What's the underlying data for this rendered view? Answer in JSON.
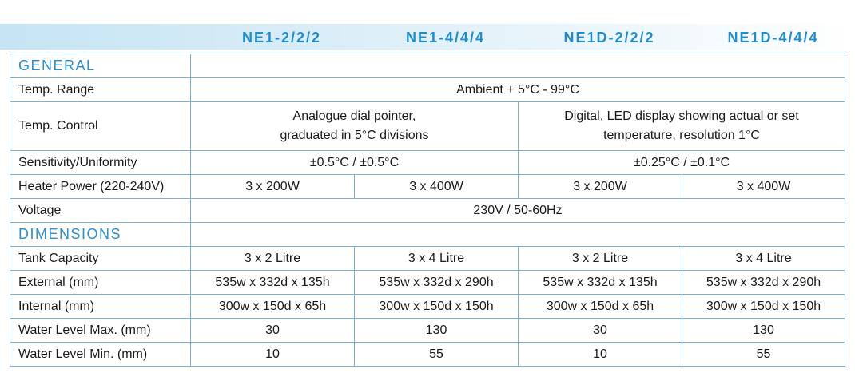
{
  "header": {
    "columns": [
      "NE1-2/2/2",
      "NE1-4/4/4",
      "NE1D-2/2/2",
      "NE1D-4/4/4"
    ]
  },
  "sections": [
    {
      "title": "GENERAL",
      "rows": [
        {
          "label": "Temp. Range",
          "cells": [
            "Ambient + 5°C - 99°C"
          ]
        },
        {
          "label": "Temp. Control",
          "cells": [
            [
              "Analogue dial pointer,",
              "graduated in 5°C divisions"
            ],
            [
              "Digital, LED display showing actual or set",
              "temperature, resolution 1°C"
            ]
          ]
        },
        {
          "label": "Sensitivity/Uniformity",
          "cells": [
            "±0.5°C / ±0.5°C",
            "±0.25°C / ±0.1°C"
          ]
        },
        {
          "label": "Heater Power (220-240V)",
          "cells": [
            "3 x 200W",
            "3 x 400W",
            "3 x 200W",
            "3 x 400W"
          ]
        },
        {
          "label": "Voltage",
          "cells": [
            "230V / 50-60Hz"
          ]
        }
      ]
    },
    {
      "title": "DIMENSIONS",
      "rows": [
        {
          "label": "Tank Capacity",
          "cells": [
            "3 x 2 Litre",
            "3 x 4 Litre",
            "3 x 2 Litre",
            "3 x 4 Litre"
          ]
        },
        {
          "label": "External (mm)",
          "cells": [
            "535w x 332d x 135h",
            "535w x 332d x 290h",
            "535w x 332d x 135h",
            "535w x 332d x 290h"
          ]
        },
        {
          "label": "Internal (mm)",
          "cells": [
            "300w x 150d x 65h",
            "300w x 150d x 150h",
            "300w x 150d x 65h",
            "300w x 150d x 150h"
          ]
        },
        {
          "label": "Water Level Max. (mm)",
          "cells": [
            "30",
            "130",
            "30",
            "130"
          ]
        },
        {
          "label": "Water Level Min. (mm)",
          "cells": [
            "10",
            "55",
            "10",
            "55"
          ]
        }
      ]
    }
  ]
}
